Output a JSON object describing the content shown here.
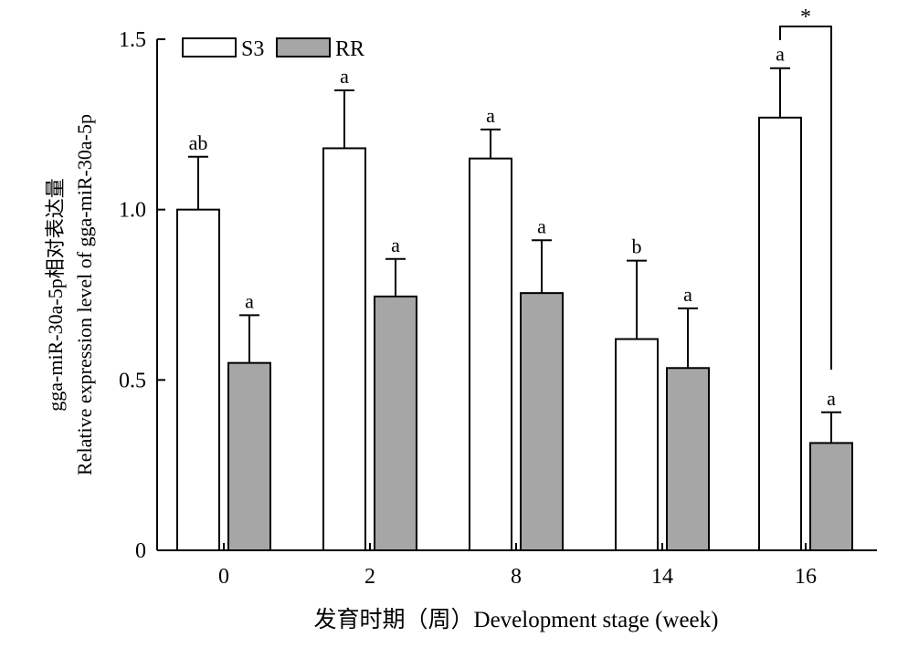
{
  "chart_data": {
    "type": "bar",
    "xlabel": "发育时期（周）Development stage (week)",
    "ylabel_cn": "gga-miR-30a-5p相对表达量",
    "ylabel_en": "Relative expression level of gga-miR-30a-5p",
    "categories": [
      "0",
      "2",
      "8",
      "14",
      "16"
    ],
    "ylim": [
      0,
      1.5
    ],
    "yticks": [
      {
        "value": 0,
        "label": "0"
      },
      {
        "value": 0.5,
        "label": "0.5"
      },
      {
        "value": 1.0,
        "label": "1.0"
      },
      {
        "value": 1.5,
        "label": "1.5"
      }
    ],
    "legend_position": "top-left",
    "series": [
      {
        "name": "S3",
        "color": "#ffffff",
        "values": [
          1.0,
          1.18,
          1.15,
          0.62,
          1.27
        ],
        "errors": [
          0.155,
          0.17,
          0.085,
          0.23,
          0.145
        ],
        "labels": [
          "ab",
          "a",
          "a",
          "b",
          "a"
        ]
      },
      {
        "name": "RR",
        "color": "#a6a6a6",
        "values": [
          0.55,
          0.745,
          0.755,
          0.535,
          0.315
        ],
        "errors": [
          0.14,
          0.11,
          0.155,
          0.175,
          0.09
        ],
        "labels": [
          "a",
          "a",
          "a",
          "a",
          "a"
        ]
      }
    ],
    "significance": {
      "category": "16",
      "label": "*"
    }
  }
}
